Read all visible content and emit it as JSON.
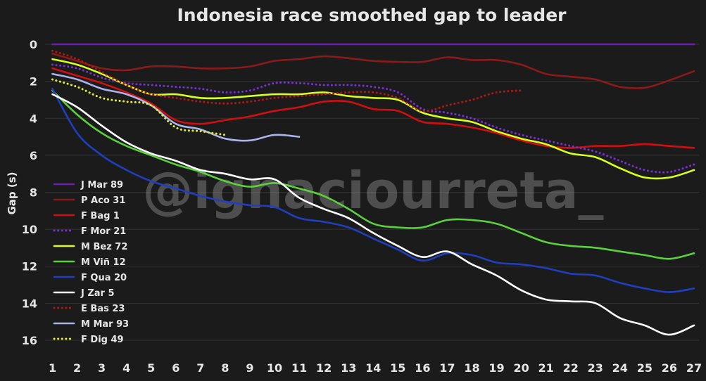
{
  "chart_data": {
    "type": "line",
    "title": "Indonesia race smoothed gap to leader",
    "ylabel": "Gap (s)",
    "xlabel": "",
    "x_ticks": [
      "1",
      "2",
      "3",
      "4",
      "5",
      "6",
      "7",
      "8",
      "9",
      "10",
      "11",
      "12",
      "13",
      "14",
      "15",
      "16",
      "17",
      "18",
      "19",
      "20",
      "21",
      "22",
      "23",
      "24",
      "25",
      "26",
      "27"
    ],
    "y_ticks": [
      "0",
      "2",
      "4",
      "6",
      "8",
      "10",
      "12",
      "14",
      "16"
    ],
    "xlim": [
      0.7,
      27.2
    ],
    "ylim": [
      -0.8,
      16.8
    ],
    "y_inverted": true,
    "grid": "horizontal",
    "legend_position": "left-center",
    "watermark": "@ignaciourreta_",
    "background": "#1b1b1b",
    "series": [
      {
        "name": "J Mar 89",
        "color": "#6a1fb0",
        "dash": "solid",
        "x": [
          1,
          27
        ],
        "y": [
          0,
          0
        ]
      },
      {
        "name": "P Aco 31",
        "color": "#8b1a1a",
        "dash": "solid",
        "x": [
          1,
          2,
          3,
          4,
          5,
          6,
          7,
          8,
          9,
          10,
          11,
          12,
          13,
          14,
          15,
          16,
          17,
          18,
          19,
          20,
          21,
          22,
          23,
          24,
          25,
          26,
          27
        ],
        "y": [
          0.5,
          0.9,
          1.3,
          1.4,
          1.2,
          1.2,
          1.3,
          1.3,
          1.2,
          0.9,
          0.8,
          0.65,
          0.75,
          0.9,
          0.95,
          0.95,
          0.7,
          0.85,
          0.85,
          1.1,
          1.6,
          1.75,
          1.9,
          2.3,
          2.35,
          1.95,
          1.45
        ]
      },
      {
        "name": "F Bag 1",
        "color": "#d01010",
        "dash": "solid",
        "x": [
          1,
          2,
          3,
          4,
          5,
          6,
          7,
          8,
          9,
          10,
          11,
          12,
          13,
          14,
          15,
          16,
          17,
          18,
          19,
          20,
          21,
          22,
          23,
          24,
          25,
          26,
          27
        ],
        "y": [
          1.3,
          1.7,
          2.1,
          2.6,
          3.2,
          4.1,
          4.3,
          4.1,
          3.9,
          3.6,
          3.4,
          3.1,
          3.1,
          3.5,
          3.6,
          4.2,
          4.3,
          4.5,
          4.8,
          5.2,
          5.5,
          5.6,
          5.5,
          5.5,
          5.4,
          5.5,
          5.6
        ]
      },
      {
        "name": "F Mor 21",
        "color": "#7a2fd6",
        "dash": "dotted",
        "x": [
          1,
          2,
          3,
          4,
          5,
          6,
          7,
          8,
          9,
          10,
          11,
          12,
          13,
          14,
          15,
          16,
          17,
          18,
          19,
          20,
          21,
          22,
          23,
          24,
          25,
          26,
          27
        ],
        "y": [
          1.1,
          1.3,
          1.8,
          2.1,
          2.2,
          2.3,
          2.4,
          2.6,
          2.5,
          2.1,
          2.1,
          2.2,
          2.2,
          2.3,
          2.6,
          3.5,
          3.7,
          4.0,
          4.5,
          4.9,
          5.2,
          5.5,
          5.8,
          6.3,
          6.8,
          6.9,
          6.5
        ]
      },
      {
        "name": "M Bez 72",
        "color": "#d8ff1e",
        "dash": "solid",
        "x": [
          1,
          2,
          3,
          4,
          5,
          6,
          7,
          8,
          9,
          10,
          11,
          12,
          13,
          14,
          15,
          16,
          17,
          18,
          19,
          20,
          21,
          22,
          23,
          24,
          25,
          26,
          27
        ],
        "y": [
          0.8,
          1.1,
          1.6,
          2.2,
          2.7,
          2.7,
          2.9,
          2.9,
          2.8,
          2.7,
          2.7,
          2.6,
          2.8,
          2.9,
          3.0,
          3.7,
          4.0,
          4.2,
          4.7,
          5.1,
          5.4,
          5.9,
          6.1,
          6.7,
          7.2,
          7.2,
          6.8
        ]
      },
      {
        "name": "M Viñ 12",
        "color": "#5ad23c",
        "dash": "solid",
        "x": [
          1,
          2,
          3,
          4,
          5,
          6,
          7,
          8,
          9,
          10,
          11,
          12,
          13,
          14,
          15,
          16,
          17,
          18,
          19,
          20,
          21,
          22,
          23,
          24,
          25,
          26,
          27
        ],
        "y": [
          2.5,
          3.8,
          4.8,
          5.5,
          6.0,
          6.5,
          6.9,
          7.4,
          7.7,
          7.5,
          7.8,
          8.2,
          8.9,
          9.7,
          9.9,
          9.9,
          9.5,
          9.5,
          9.7,
          10.2,
          10.7,
          10.9,
          11.0,
          11.2,
          11.4,
          11.6,
          11.3
        ]
      },
      {
        "name": "F Qua 20",
        "color": "#1f3fbf",
        "dash": "solid",
        "x": [
          1,
          2,
          3,
          4,
          5,
          6,
          7,
          8,
          9,
          10,
          11,
          12,
          13,
          14,
          15,
          16,
          17,
          18,
          19,
          20,
          21,
          22,
          23,
          24,
          25,
          26,
          27
        ],
        "y": [
          2.4,
          4.8,
          6.0,
          6.8,
          7.4,
          7.8,
          8.2,
          8.5,
          8.7,
          8.8,
          9.4,
          9.6,
          9.9,
          10.5,
          11.1,
          11.7,
          11.3,
          11.4,
          11.8,
          11.9,
          12.1,
          12.4,
          12.5,
          12.9,
          13.2,
          13.4,
          13.2
        ]
      },
      {
        "name": "J Zar 5",
        "color": "#ffffff",
        "dash": "solid",
        "x": [
          1,
          2,
          3,
          4,
          5,
          6,
          7,
          8,
          9,
          10,
          11,
          12,
          13,
          14,
          15,
          16,
          17,
          18,
          19,
          20,
          21,
          22,
          23,
          24,
          25,
          26,
          27
        ],
        "y": [
          2.7,
          3.4,
          4.4,
          5.3,
          5.9,
          6.3,
          6.8,
          7.0,
          7.3,
          7.3,
          8.3,
          8.9,
          9.4,
          10.2,
          10.9,
          11.5,
          11.2,
          11.9,
          12.5,
          13.3,
          13.8,
          13.9,
          14.0,
          14.8,
          15.2,
          15.7,
          15.2
        ]
      },
      {
        "name": "E Bas 23",
        "color": "#b01818",
        "dash": "dotted",
        "x": [
          1,
          2,
          3,
          4,
          5,
          6,
          7,
          8,
          9,
          10,
          11,
          12,
          13,
          14,
          15,
          16,
          17,
          18,
          19,
          20
        ],
        "y": [
          0.35,
          0.8,
          1.5,
          2.2,
          2.7,
          2.9,
          3.1,
          3.2,
          3.1,
          2.9,
          2.8,
          2.7,
          2.6,
          2.6,
          2.9,
          3.6,
          3.3,
          3.0,
          2.6,
          2.5
        ]
      },
      {
        "name": "M Mar 93",
        "color": "#aab4ec",
        "dash": "solid",
        "x": [
          1,
          2,
          3,
          4,
          5,
          6,
          7,
          8,
          9,
          10,
          11
        ],
        "y": [
          1.6,
          1.9,
          2.4,
          2.7,
          3.3,
          4.3,
          4.6,
          5.1,
          5.2,
          4.9,
          5.0
        ]
      },
      {
        "name": "F Dig 49",
        "color": "#e3f02a",
        "dash": "dotted",
        "x": [
          1,
          2,
          3,
          4,
          5,
          6,
          7,
          8
        ],
        "y": [
          1.9,
          2.3,
          2.9,
          3.1,
          3.3,
          4.5,
          4.7,
          4.9
        ]
      }
    ]
  }
}
